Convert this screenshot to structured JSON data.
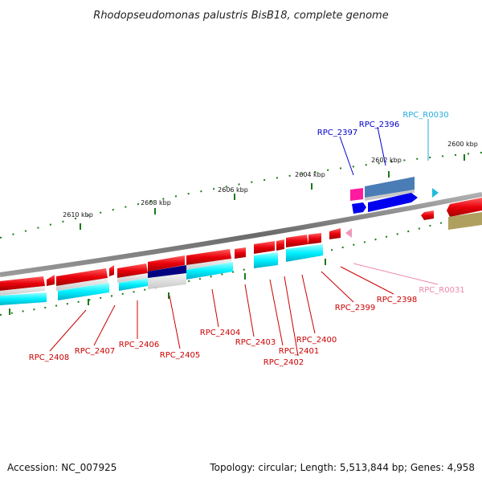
{
  "title": "Rhodopseudomonas palustris BisB18, complete genome",
  "accession_text": "Accession: NC_007925",
  "topology_text": "Topology: circular; Length: 5,513,844 bp; Genes: 4,958",
  "scale_ticks": [
    "2610 kbp",
    "2608 kbp",
    "2606 kbp",
    "2604 kbp",
    "2602 kbp",
    "2600 kbp"
  ],
  "gene_labels": [
    "RPC_R0030",
    "RPC_2397",
    "RPC_2396",
    "RPC_2408",
    "RPC_2407",
    "RPC_2406",
    "RPC_2405",
    "RPC_2404",
    "RPC_2403",
    "RPC_2401",
    "RPC_2402",
    "RPC_2400",
    "RPC_2399",
    "RPC_2398",
    "RPC_R0031"
  ],
  "colors": {
    "cds": "#e8000b",
    "rna": "#00c8e0",
    "label_red": "#cc0000",
    "label_blue": "#0000cc",
    "label_cyan": "#22aadd",
    "label_pink": "#ee88aa",
    "backbone": "#888888",
    "tick": "#1a7a1a"
  }
}
